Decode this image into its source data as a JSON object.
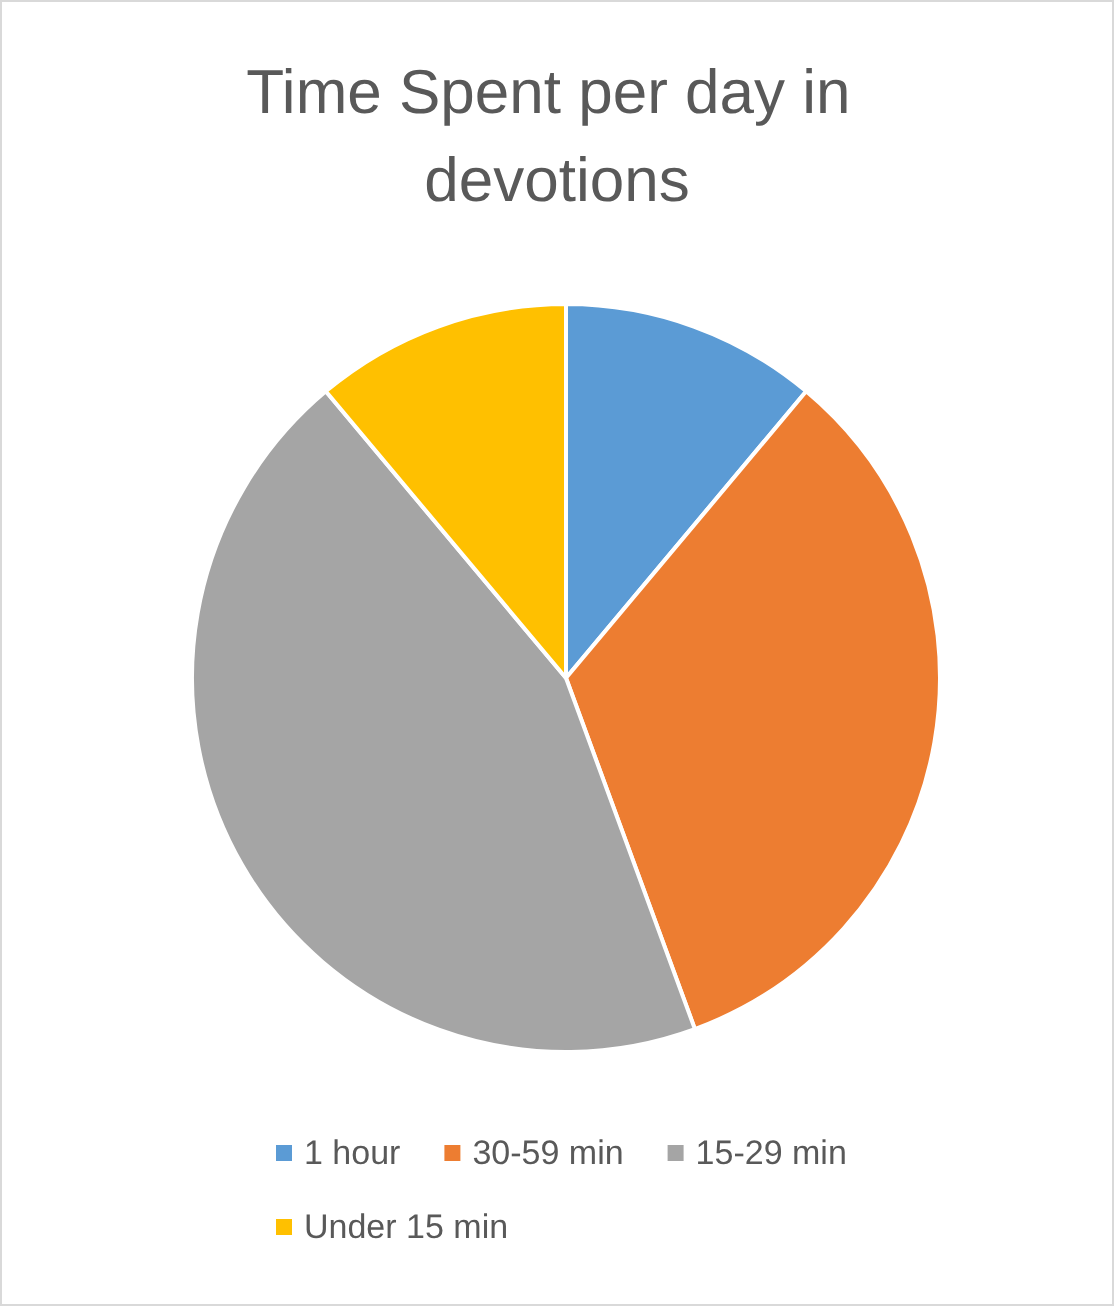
{
  "chart_data": {
    "type": "pie",
    "title": "Time Spent per day in devotions",
    "categories": [
      "1 hour",
      "30-59 min",
      "15-29 min",
      "Under 15 min"
    ],
    "values": [
      11.1,
      33.3,
      44.5,
      11.1
    ],
    "colors": [
      "#5b9bd5",
      "#ed7d31",
      "#a5a5a5",
      "#ffc000"
    ],
    "legend": "bottom"
  }
}
